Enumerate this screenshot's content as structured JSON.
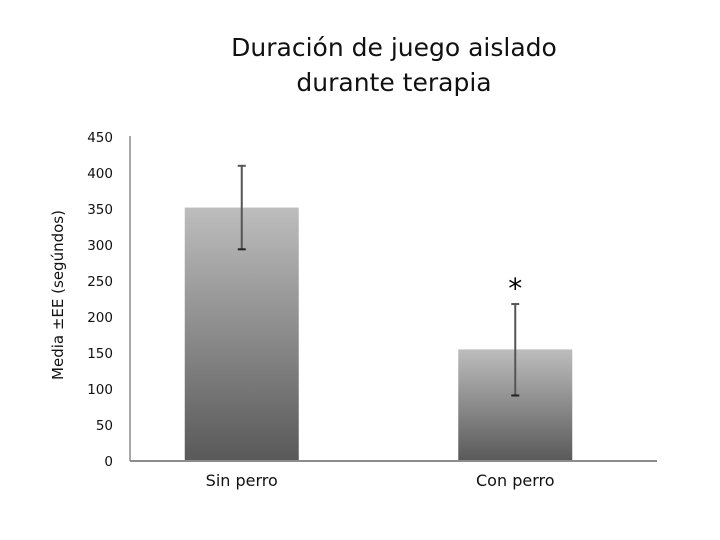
{
  "chart": {
    "title_line1": "Duración de juego aislado",
    "title_line2": "durante terapia",
    "ylabel": "Media ±EE (segúndos)",
    "significance_marker": "*"
  },
  "chart_data": {
    "type": "bar",
    "title": "Duración de juego aislado durante terapia",
    "xlabel": "",
    "ylabel": "Media ±EE (segúndos)",
    "categories": [
      "Sin perro",
      "Con perro"
    ],
    "values": [
      352,
      155
    ],
    "error_upper": [
      410,
      218
    ],
    "error_lower": [
      294,
      91
    ],
    "standard_error": [
      58,
      63
    ],
    "ylim": [
      0,
      450
    ],
    "yticks": [
      0,
      50,
      100,
      150,
      200,
      250,
      300,
      350,
      400,
      450
    ],
    "grid": false,
    "legend": null,
    "annotations": [
      {
        "category": "Con perro",
        "text": "*",
        "meaning": "significant difference"
      }
    ],
    "bar_fill": {
      "gradient_top": "#bdbdbd",
      "gradient_bottom": "#595959"
    },
    "axis_color": "#8c8c8c",
    "errorbar_color": "#555555"
  }
}
